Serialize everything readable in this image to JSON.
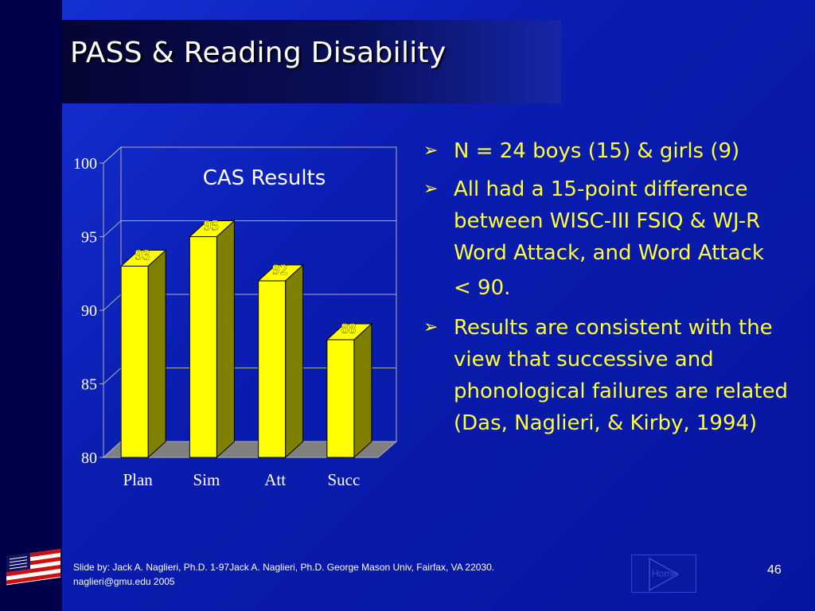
{
  "slide": {
    "title": "PASS & Reading Disability",
    "page_number": "46",
    "home_label": "Home",
    "footer_line1": "Slide by: Jack A. Naglieri, Ph.D. 1-97Jack A. Naglieri, Ph.D.  George Mason Univ, Fairfax, VA 22030.",
    "footer_line2": "naglieri@gmu.edu 2005"
  },
  "bullets": [
    {
      "text": "N = 24 boys (15) & girls (9)"
    },
    {
      "text": "All had a 15-point difference between WISC-III FSIQ & WJ-R Word Attack, and Word Attack"
    },
    {
      "text": "< 90.",
      "continuation": true
    },
    {
      "text": "Results are consistent with the view that successive and phonological failures are related (Das, Naglieri, & Kirby, 1994)"
    }
  ],
  "chart_data": {
    "type": "bar",
    "title": "CAS Results",
    "categories": [
      "Plan",
      "Sim",
      "Att",
      "Succ"
    ],
    "values": [
      93,
      95,
      92,
      88
    ],
    "value_labels": [
      "93",
      "95",
      "92",
      "88"
    ],
    "ylim": [
      80,
      100
    ],
    "yticks": [
      "80",
      "85",
      "90",
      "95",
      "100"
    ],
    "xlabel": "",
    "ylabel": "",
    "bar_color": "#ffff00",
    "bar_side_color": "#808000",
    "grid": true
  },
  "colors": {
    "background": "#0a1db0",
    "text_accent": "#ffff33",
    "title_text": "#ffffff"
  },
  "icons": {
    "bullet": "arrow-right-icon",
    "logo": "flag-icon"
  }
}
